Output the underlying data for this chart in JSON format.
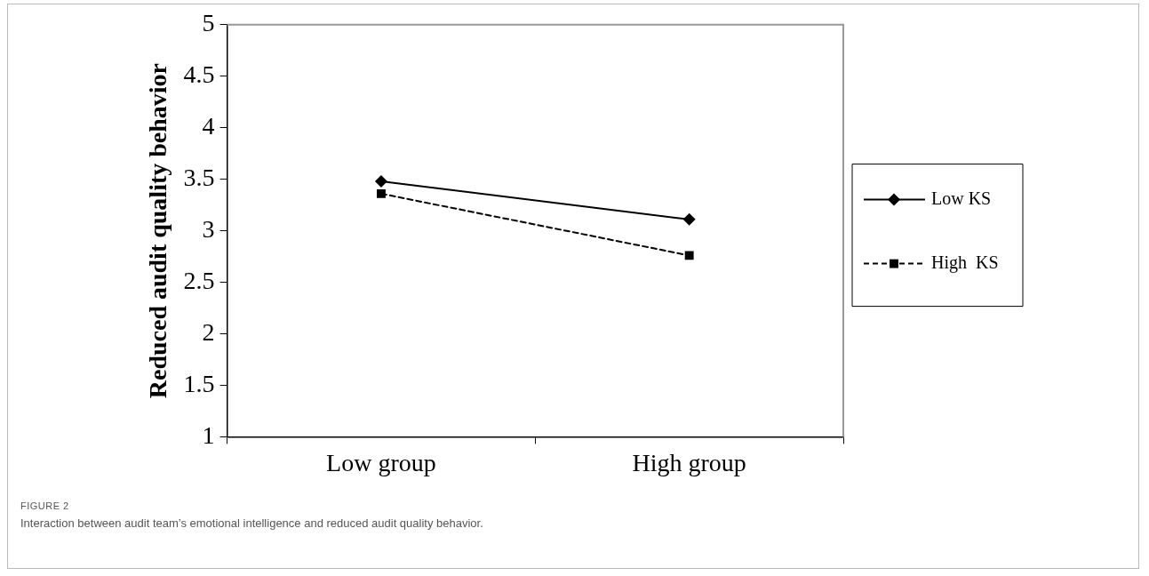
{
  "chart_data": {
    "type": "line",
    "ylabel": "Reduced audit quality behavior",
    "categories": [
      "Low group",
      "High group"
    ],
    "series": [
      {
        "name": "Low KS",
        "color": "#000000",
        "values": [
          3.48,
          3.11
        ],
        "marker": "diamond",
        "line_style": "solid"
      },
      {
        "name": "High  KS",
        "color": "#000000",
        "values": [
          3.36,
          2.76
        ],
        "marker": "square",
        "line_style": "dashed"
      }
    ],
    "ylim": [
      1,
      5
    ],
    "yticks": [
      1,
      1.5,
      2,
      2.5,
      3,
      3.5,
      4,
      4.5,
      5
    ],
    "grid": false,
    "legend": "right",
    "annotations": [
      "FIGURE 2",
      "Interaction between audit team’s emotional intelligence and reduced audit quality behavior."
    ]
  }
}
